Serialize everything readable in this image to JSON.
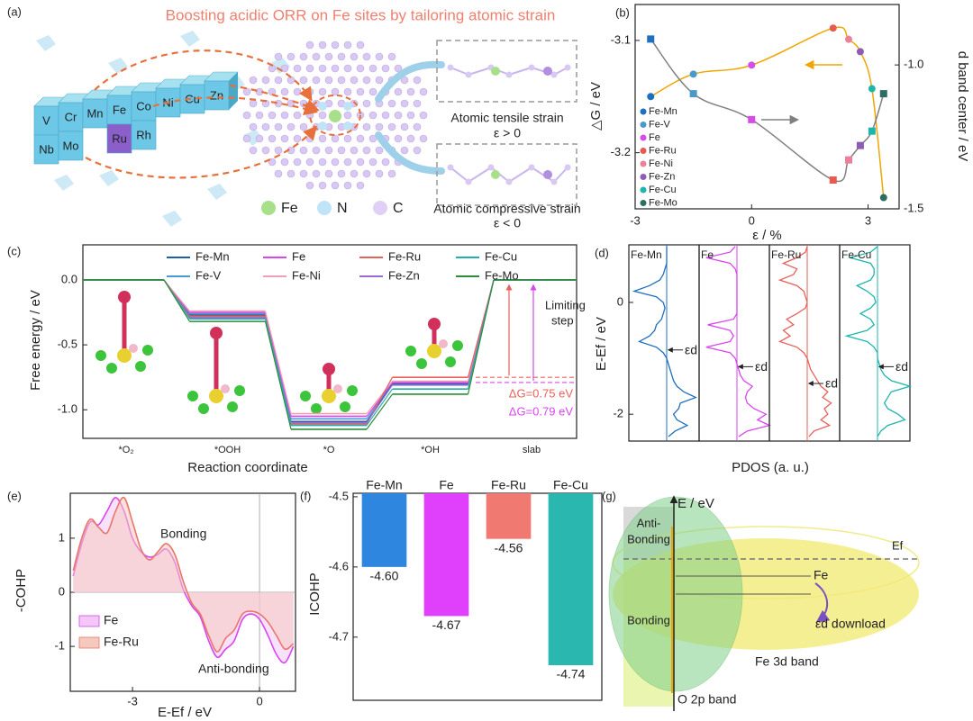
{
  "panel_a": {
    "label": "(a)",
    "title": "Boosting acidic ORR on Fe sites by tailoring atomic strain",
    "elements_row1": [
      "V",
      "Cr",
      "Mn",
      "Fe",
      "Co",
      "Ni",
      "Cu",
      "Zn"
    ],
    "elements_row2": [
      "Nb",
      "Mo",
      "Ru",
      "Rh"
    ],
    "tensile": "Atomic tensile strain",
    "tensile_condition": "ε > 0",
    "compressive": "Atomic compressive strain",
    "compressive_condition": "ε < 0",
    "legend": [
      "Fe",
      "N",
      "C"
    ]
  },
  "chart_data": [
    {
      "type": "dual_scatter",
      "label": "(b)",
      "xlabel": "ε / %",
      "ylabel": "△G / eV",
      "y2label": "d band center / eV",
      "xlim": [
        -3,
        3.8
      ],
      "xticks": [
        -3,
        0,
        3
      ],
      "ylim": [
        -3.25,
        -3.068
      ],
      "yticks": [
        -3.1,
        -3.2
      ],
      "y2lim": [
        -1.5,
        -0.79
      ],
      "y2ticks": [
        {
          "value": -1,
          "label": "-1.0"
        },
        -1.5
      ],
      "categories": [
        "Fe-Mn",
        "Fe-V",
        "Fe",
        "Fe-Ru",
        "Fe-Ni",
        "Fe-Zn",
        "Fe-Cu",
        "Fe-Mo"
      ],
      "colors": [
        "#1f6fc0",
        "#4a9ac8",
        "#d64ce8",
        "#e85a50",
        "#ec7f9a",
        "#8e5bb5",
        "#1fb5ad",
        "#2e6e60"
      ],
      "x": [
        -2.6,
        -1.5,
        0,
        2.1,
        2.5,
        2.8,
        3.1,
        3.4
      ],
      "series": [
        {
          "marker": "circle",
          "color": "#f0a500",
          "values": [
            -3.15,
            -3.13,
            -3.122,
            -3.089,
            -3.099,
            -3.11,
            -3.143,
            -3.24
          ]
        },
        {
          "marker": "square",
          "color": "#808080",
          "axis": "y2",
          "values": [
            -0.91,
            -1.1,
            -1.19,
            -1.4,
            -1.33,
            -1.28,
            -1.23,
            -1.1
          ]
        }
      ]
    },
    {
      "type": "energy_steps",
      "label": "(c)",
      "xlabel": "Reaction coordinate",
      "ylabel": "Free energy / eV",
      "categories": [
        "*O₂",
        "*OOH",
        "*O",
        "*OH",
        "slab"
      ],
      "ylim": [
        -1.22,
        0.27
      ],
      "yticks": [
        {
          "value": 0,
          "label": "0.0"
        },
        -0.5,
        {
          "value": -1,
          "label": "-1.0"
        }
      ],
      "series": [
        {
          "name": "Fe-Mn",
          "color": "#1f5fa8",
          "values": [
            0,
            -0.27,
            -1.09,
            -0.8,
            0
          ]
        },
        {
          "name": "Fe-V",
          "color": "#4a9ad4",
          "values": [
            0,
            -0.26,
            -1.07,
            -0.79,
            0
          ]
        },
        {
          "name": "Fe",
          "color": "#d946ef",
          "values": [
            0,
            -0.25,
            -1.05,
            -0.79,
            0
          ]
        },
        {
          "name": "Fe-Ni",
          "color": "#f0a0b4",
          "values": [
            0,
            -0.24,
            -1.03,
            -0.78,
            0
          ]
        },
        {
          "name": "Fe-Ru",
          "color": "#e8615b",
          "values": [
            0,
            -0.28,
            -1.11,
            -0.75,
            0
          ]
        },
        {
          "name": "Fe-Zn",
          "color": "#9b6bd1",
          "values": [
            0,
            -0.29,
            -1.1,
            -0.81,
            0
          ]
        },
        {
          "name": "Fe-Cu",
          "color": "#20b2aa",
          "values": [
            0,
            -0.3,
            -1.12,
            -0.84,
            0
          ]
        },
        {
          "name": "Fe-Mo",
          "color": "#2e8b3a",
          "values": [
            0,
            -0.32,
            -1.15,
            -0.88,
            0
          ]
        }
      ],
      "limiting_step": [
        "Limiting",
        "step"
      ],
      "dg_ru": "ΔG=0.75 eV",
      "dg_fe": "ΔG=0.79 eV"
    },
    {
      "type": "pdos",
      "label": "(d)",
      "xlabel": "PDOS (a. u.)",
      "ylabel": "E-Ef / eV",
      "ylim": [
        -2.48,
        1.03
      ],
      "yticks": [
        0,
        -2
      ],
      "xlim": [
        -1,
        1
      ],
      "d_label": "εd",
      "energies": [
        1.0,
        0.9,
        0.8,
        0.7,
        0.6,
        0.5,
        0.4,
        0.3,
        0.2,
        0.1,
        0.0,
        -0.1,
        -0.2,
        -0.3,
        -0.4,
        -0.5,
        -0.6,
        -0.7,
        -0.8,
        -0.9,
        -1.0,
        -1.1,
        -1.2,
        -1.3,
        -1.4,
        -1.5,
        -1.6,
        -1.7,
        -1.8,
        -1.9,
        -2.0,
        -2.1,
        -2.2,
        -2.3,
        -2.4
      ],
      "series": [
        {
          "name": "Fe-Mn",
          "color": "#1f6fc0",
          "d_band_center": -0.85,
          "values": [
            0,
            0,
            0,
            0,
            -0.05,
            -0.1,
            -0.2,
            -0.5,
            -0.95,
            -0.3,
            -0.1,
            -0.05,
            -0.1,
            -0.15,
            -0.3,
            -0.35,
            -0.5,
            -0.8,
            -0.3,
            -0.1,
            0,
            0.05,
            0.1,
            0.15,
            0.2,
            0.3,
            0.5,
            0.85,
            0.4,
            0.35,
            0.2,
            0.3,
            0.6,
            0.25,
            0.05
          ]
        },
        {
          "name": "Fe",
          "color": "#d946ef",
          "d_band_center": -1.15,
          "values": [
            -0.05,
            -0.2,
            -0.9,
            -0.2,
            -0.05,
            0,
            0,
            0,
            0,
            0,
            0,
            0,
            0,
            -0.1,
            -0.85,
            -0.2,
            -0.1,
            -0.2,
            -0.9,
            -0.2,
            -0.05,
            0,
            0.05,
            0.1,
            0.2,
            0.45,
            0.3,
            0.25,
            0.3,
            0.5,
            0.85,
            0.6,
            0.95,
            0.3,
            0.05
          ]
        },
        {
          "name": "Fe-Ru",
          "color": "#e8615b",
          "d_band_center": -1.45,
          "values": [
            0,
            -0.05,
            -0.3,
            -0.7,
            -0.3,
            -0.4,
            -0.8,
            -0.3,
            -0.1,
            -0.05,
            0,
            -0.05,
            -0.3,
            -0.6,
            -0.4,
            -0.7,
            -0.5,
            -0.8,
            -0.3,
            -0.1,
            0,
            0.05,
            0.1,
            0.2,
            0.3,
            0.4,
            0.6,
            0.45,
            0.7,
            0.5,
            0.6,
            0.4,
            0.65,
            0.2,
            0.05
          ]
        },
        {
          "name": "Fe-Cu",
          "color": "#1fb5ad",
          "d_band_center": -1.15,
          "values": [
            0,
            -0.2,
            -0.8,
            -0.2,
            -0.1,
            -0.1,
            -0.2,
            -0.6,
            -0.3,
            -0.1,
            -0.05,
            -0.2,
            -0.5,
            -0.2,
            -0.1,
            -0.3,
            -0.9,
            -0.3,
            -0.1,
            0,
            0,
            0.05,
            0.1,
            0.2,
            0.4,
            0.95,
            0.4,
            0.3,
            0.2,
            0.3,
            0.6,
            0.8,
            0.3,
            0.1,
            0
          ]
        }
      ]
    },
    {
      "type": "cohp",
      "label": "(e)",
      "xlabel": "E-Ef / eV",
      "ylabel": "-COHP",
      "xlim": [
        -4.47,
        0.85
      ],
      "xticks": [
        -3,
        0
      ],
      "ylim": [
        -1.83,
        1.83
      ],
      "yticks": [
        1,
        0,
        -1
      ],
      "x": [
        -4.4,
        -4.2,
        -4.0,
        -3.8,
        -3.6,
        -3.4,
        -3.2,
        -3.0,
        -2.8,
        -2.6,
        -2.4,
        -2.2,
        -2.0,
        -1.8,
        -1.6,
        -1.4,
        -1.2,
        -1.0,
        -0.8,
        -0.6,
        -0.4,
        -0.2,
        0.0,
        0.2,
        0.4,
        0.6,
        0.8
      ],
      "series": [
        {
          "name": "Fe",
          "color": "#d946ef",
          "fill": "#f3c8f8",
          "values": [
            0.3,
            0.9,
            1.3,
            1.25,
            1.5,
            1.75,
            1.5,
            1.0,
            0.75,
            0.65,
            0.7,
            0.8,
            0.55,
            0.05,
            -0.25,
            -0.45,
            -0.9,
            -1.2,
            -1.05,
            -0.9,
            -0.5,
            -0.4,
            -0.5,
            -0.8,
            -1.15,
            -1.3,
            -1.0
          ]
        },
        {
          "name": "Fe-Ru",
          "color": "#e8776b",
          "fill": "#f6c9bf",
          "values": [
            0.4,
            1.0,
            1.35,
            1.2,
            1.1,
            1.5,
            1.75,
            1.3,
            0.8,
            0.6,
            0.75,
            0.9,
            0.7,
            0.2,
            -0.2,
            -0.4,
            -0.8,
            -1.1,
            -0.85,
            -0.7,
            -0.4,
            -0.35,
            -0.4,
            -0.55,
            -0.8,
            -1.05,
            -0.95
          ]
        }
      ],
      "bonding": "Bonding",
      "antibonding": "Anti-bonding"
    },
    {
      "type": "bar",
      "label": "(f)",
      "ylabel": "ICOHP",
      "categories": [
        "Fe-Mn",
        "Fe",
        "Fe-Ru",
        "Fe-Cu"
      ],
      "values": [
        -4.6,
        -4.67,
        -4.56,
        -4.74
      ],
      "value_labels": [
        "-4.60",
        "-4.67",
        "-4.56",
        "-4.74"
      ],
      "colors": [
        "#2e86de",
        "#e040fb",
        "#f07a72",
        "#2ab7b0"
      ],
      "ylim": [
        -4.79,
        -4.495
      ],
      "yticks": [
        -4.5,
        -4.6,
        -4.7
      ]
    }
  ],
  "panel_g": {
    "label": "(g)",
    "axis": "E / eV",
    "anti_bonding": [
      "Anti-",
      "Bonding"
    ],
    "bonding": "Bonding",
    "fermi": "Ef",
    "fe": "Fe",
    "ed_download": "εd download",
    "fe3d": "Fe 3d band",
    "o2p": "O 2p band"
  }
}
